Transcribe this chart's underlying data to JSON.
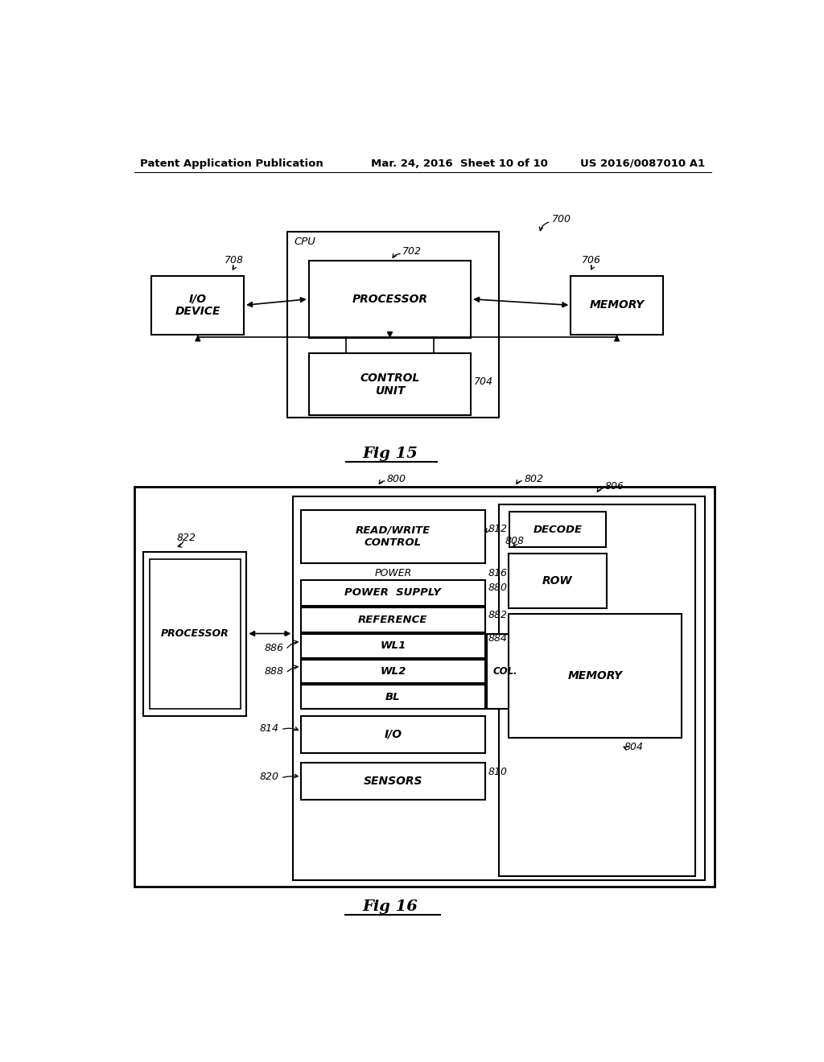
{
  "bg_color": "#ffffff",
  "header_left": "Patent Application Publication",
  "header_mid": "Mar. 24, 2016  Sheet 10 of 10",
  "header_right": "US 2016/0087010 A1"
}
